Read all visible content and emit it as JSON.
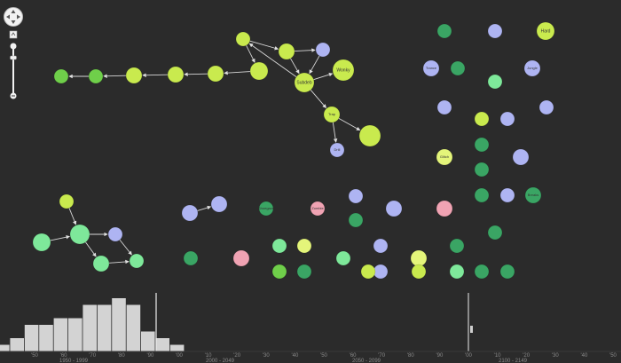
{
  "colors": {
    "bg": "#2b2b2b",
    "lime": "#c9ea4e",
    "yellowgreen": "#e4f57a",
    "green": "#6fcf4a",
    "mint": "#7ee89a",
    "teal": "#3aa564",
    "lavender": "#aeb4f2",
    "pink": "#f0a3b3",
    "link": "#d8d8d8",
    "bar": "#d3d3d3"
  },
  "nodes": [
    {
      "id": "n1",
      "label": "",
      "color": "green"
    },
    {
      "id": "n2",
      "label": "",
      "color": "green"
    },
    {
      "id": "n3",
      "label": "",
      "color": "lime"
    },
    {
      "id": "n4",
      "label": "",
      "color": "lime"
    },
    {
      "id": "n5",
      "label": "",
      "color": "lime"
    },
    {
      "id": "n6",
      "label": "",
      "color": "lime"
    },
    {
      "id": "n7",
      "label": "",
      "color": "lime"
    },
    {
      "id": "n8",
      "label": "",
      "color": "lime"
    },
    {
      "id": "n9",
      "label": "",
      "color": "lavender"
    },
    {
      "id": "n10",
      "label": "Subdeb",
      "color": "lime"
    },
    {
      "id": "n11",
      "label": "Wonky",
      "color": "lime"
    },
    {
      "id": "n12",
      "label": "Trap",
      "color": "lime"
    },
    {
      "id": "n13",
      "label": "",
      "color": "lime"
    },
    {
      "id": "n14",
      "label": "Drill",
      "color": "lavender"
    },
    {
      "id": "r1",
      "label": "",
      "color": "teal"
    },
    {
      "id": "r2",
      "label": "",
      "color": "lavender"
    },
    {
      "id": "r3",
      "label": "Hard",
      "color": "lime"
    },
    {
      "id": "r4",
      "label": "Trance",
      "color": "lavender"
    },
    {
      "id": "r5",
      "label": "",
      "color": "teal"
    },
    {
      "id": "r6",
      "label": "",
      "color": "mint"
    },
    {
      "id": "r7",
      "label": "Jungle",
      "color": "lavender"
    },
    {
      "id": "r8",
      "label": "",
      "color": "lavender"
    },
    {
      "id": "r9",
      "label": "",
      "color": "lime"
    },
    {
      "id": "r10",
      "label": "",
      "color": "lavender"
    },
    {
      "id": "r11",
      "label": "",
      "color": "lavender"
    },
    {
      "id": "r12",
      "label": "",
      "color": "teal"
    },
    {
      "id": "r13",
      "label": "Glitch",
      "color": "yellowgreen"
    },
    {
      "id": "r14",
      "label": "",
      "color": "lavender"
    },
    {
      "id": "r15",
      "label": "",
      "color": "teal"
    },
    {
      "id": "r16",
      "label": "",
      "color": "teal"
    },
    {
      "id": "r17",
      "label": "",
      "color": "lavender"
    },
    {
      "id": "r18",
      "label": "Breaks",
      "color": "teal"
    },
    {
      "id": "g1",
      "label": "",
      "color": "lime"
    },
    {
      "id": "g2",
      "label": "",
      "color": "mint"
    },
    {
      "id": "g3",
      "label": "",
      "color": "mint"
    },
    {
      "id": "g4",
      "label": "",
      "color": "lavender"
    },
    {
      "id": "g5",
      "label": "",
      "color": "mint"
    },
    {
      "id": "g6",
      "label": "",
      "color": "mint"
    },
    {
      "id": "m1",
      "label": "",
      "color": "lavender"
    },
    {
      "id": "m2",
      "label": "",
      "color": "lavender"
    },
    {
      "id": "m3",
      "label": "Shoegaze",
      "color": "teal"
    },
    {
      "id": "m4",
      "label": "Zombie",
      "color": "pink"
    },
    {
      "id": "m5",
      "label": "",
      "color": "lavender"
    },
    {
      "id": "m6",
      "label": "",
      "color": "teal"
    },
    {
      "id": "m7",
      "label": "",
      "color": "lavender"
    },
    {
      "id": "m8",
      "label": "",
      "color": "pink"
    },
    {
      "id": "m9",
      "label": "",
      "color": "teal"
    },
    {
      "id": "m10",
      "label": "",
      "color": "pink"
    },
    {
      "id": "m11",
      "label": "",
      "color": "mint"
    },
    {
      "id": "m12",
      "label": "",
      "color": "yellowgreen"
    },
    {
      "id": "m13",
      "label": "",
      "color": "teal"
    },
    {
      "id": "m14",
      "label": "",
      "color": "lavender"
    },
    {
      "id": "m15",
      "label": "",
      "color": "yellowgreen"
    },
    {
      "id": "m16",
      "label": "",
      "color": "teal"
    },
    {
      "id": "m17",
      "label": "",
      "color": "mint"
    },
    {
      "id": "m18",
      "label": "",
      "color": "green"
    },
    {
      "id": "m19",
      "label": "",
      "color": "teal"
    },
    {
      "id": "m20",
      "label": "",
      "color": "mint"
    },
    {
      "id": "m21",
      "label": "",
      "color": "teal"
    },
    {
      "id": "m22",
      "label": "",
      "color": "lavender"
    },
    {
      "id": "m23",
      "label": "",
      "color": "lime"
    },
    {
      "id": "m24",
      "label": "",
      "color": "teal"
    },
    {
      "id": "m25",
      "label": "",
      "color": "lime"
    }
  ],
  "links": [
    [
      "n2",
      "n1"
    ],
    [
      "n3",
      "n2"
    ],
    [
      "n4",
      "n3"
    ],
    [
      "n5",
      "n4"
    ],
    [
      "n6",
      "n5"
    ],
    [
      "n7",
      "n6"
    ],
    [
      "n10",
      "n7"
    ],
    [
      "n7",
      "n8"
    ],
    [
      "n8",
      "n9"
    ],
    [
      "n8",
      "n10"
    ],
    [
      "n9",
      "n10"
    ],
    [
      "n10",
      "n11"
    ],
    [
      "n10",
      "n12"
    ],
    [
      "n12",
      "n13"
    ],
    [
      "n12",
      "n14"
    ],
    [
      "g1",
      "g2"
    ],
    [
      "g3",
      "g2"
    ],
    [
      "g2",
      "g4"
    ],
    [
      "g2",
      "g5"
    ],
    [
      "g5",
      "g6"
    ],
    [
      "g4",
      "g6"
    ],
    [
      "m1",
      "m2"
    ]
  ],
  "timeline": {
    "histogram": [
      1,
      2,
      4,
      4,
      5,
      5,
      7,
      7,
      8,
      7,
      3,
      2,
      1
    ],
    "decades_top": [
      "'50",
      "'60",
      "'70",
      "'80",
      "'90",
      "'00",
      "'10",
      "'20",
      "'30",
      "'40",
      "'50",
      "'60",
      "'70",
      "'80",
      "'90",
      "'00",
      "'10",
      "'20",
      "'30",
      "'40",
      "'50"
    ],
    "era_labels": [
      "1950 - 1999",
      "2000 - 2049",
      "2050 - 2099",
      "2100 - 2149"
    ]
  }
}
